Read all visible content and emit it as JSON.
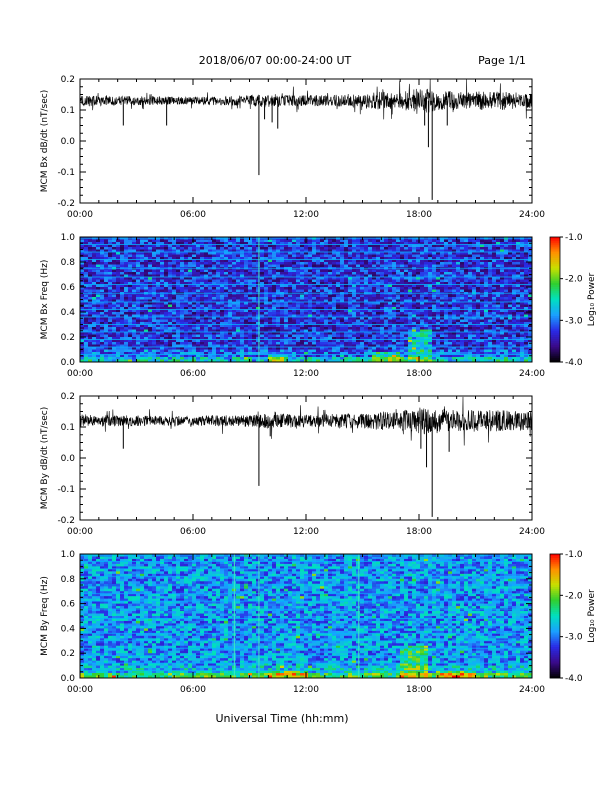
{
  "header": {
    "title": "2018/06/07  00:00-24:00 UT",
    "page": "Page 1/1"
  },
  "footer": {
    "xlabel": "Universal Time (hh:mm)"
  },
  "colorbar": {
    "label": "Log₁₀ Power",
    "ticks": [
      "-1.0",
      "-2.0",
      "-3.0",
      "-4.0"
    ],
    "range": [
      -4.0,
      -1.0
    ],
    "colors": [
      "#000000",
      "#3a0a8a",
      "#2a2ae6",
      "#1aa0ff",
      "#00e0c0",
      "#30d030",
      "#c8e000",
      "#ff9000",
      "#ff0000"
    ]
  },
  "chart_data": [
    {
      "type": "line",
      "ylabel": "MCM Bx dB/dt (nT/sec)",
      "xlim": [
        0,
        24
      ],
      "ylim": [
        -0.2,
        0.2
      ],
      "x_ticks": [
        "00:00",
        "06:00",
        "12:00",
        "18:00",
        "24:00"
      ],
      "y_ticks": [
        "0.2",
        "0.1",
        "0.0",
        "-0.1",
        "-0.2"
      ],
      "baseline": 0.13,
      "noise_profile": [
        [
          0,
          0.018
        ],
        [
          2,
          0.015
        ],
        [
          6,
          0.012
        ],
        [
          9,
          0.018
        ],
        [
          10,
          0.022
        ],
        [
          12,
          0.018
        ],
        [
          15,
          0.02
        ],
        [
          16,
          0.03
        ],
        [
          17,
          0.025
        ],
        [
          18,
          0.045
        ],
        [
          19,
          0.035
        ],
        [
          20,
          0.03
        ],
        [
          22,
          0.03
        ],
        [
          24,
          0.025
        ]
      ],
      "spikes": [
        [
          9.5,
          -0.11
        ],
        [
          9.8,
          0.07
        ],
        [
          10.2,
          0.06
        ],
        [
          10.5,
          0.04
        ],
        [
          4.6,
          0.05
        ],
        [
          18.7,
          -0.19
        ],
        [
          18.5,
          -0.02
        ],
        [
          18.3,
          0.05
        ],
        [
          19.5,
          0.05
        ],
        [
          2.3,
          0.05
        ]
      ]
    },
    {
      "type": "heatmap",
      "ylabel": "MCM Bx Freq (Hz)",
      "xlim": [
        0,
        24
      ],
      "ylim": [
        0.0,
        1.0
      ],
      "zlim": [
        -4.0,
        -1.0
      ],
      "x_ticks": [
        "00:00",
        "06:00",
        "12:00",
        "18:00",
        "24:00"
      ],
      "y_ticks": [
        "1.0",
        "0.8",
        "0.6",
        "0.4",
        "0.2",
        "0.0"
      ],
      "background_level": -3.3,
      "harmonic_lines_hz": [
        0.06,
        0.12,
        0.18,
        0.24,
        0.3,
        0.36,
        0.42,
        0.48,
        0.55,
        0.62,
        0.68,
        0.75,
        0.82,
        0.88,
        0.94,
        0.99
      ],
      "bright_vertical_lines_hr": [
        9.5
      ],
      "low_freq_bursts": [
        [
          10,
          11,
          0.06
        ],
        [
          17.5,
          18.6,
          0.25
        ],
        [
          15.5,
          17,
          0.08
        ]
      ]
    },
    {
      "type": "line",
      "ylabel": "MCM By dB/dt (nT/sec)",
      "xlim": [
        0,
        24
      ],
      "ylim": [
        -0.2,
        0.2
      ],
      "x_ticks": [
        "00:00",
        "06:00",
        "12:00",
        "18:00",
        "24:00"
      ],
      "y_ticks": [
        "0.2",
        "0.1",
        "0.0",
        "-0.1",
        "-0.2"
      ],
      "baseline": 0.12,
      "noise_profile": [
        [
          0,
          0.02
        ],
        [
          2,
          0.018
        ],
        [
          6,
          0.015
        ],
        [
          9,
          0.02
        ],
        [
          10,
          0.025
        ],
        [
          12,
          0.02
        ],
        [
          15,
          0.025
        ],
        [
          16,
          0.03
        ],
        [
          17,
          0.03
        ],
        [
          18,
          0.045
        ],
        [
          19,
          0.04
        ],
        [
          20,
          0.035
        ],
        [
          22,
          0.035
        ],
        [
          24,
          0.03
        ]
      ],
      "spikes": [
        [
          9.5,
          -0.09
        ],
        [
          10.1,
          0.07
        ],
        [
          18.7,
          -0.19
        ],
        [
          18.4,
          -0.03
        ],
        [
          18.1,
          0.03
        ],
        [
          19.6,
          0.02
        ],
        [
          2.3,
          0.03
        ]
      ]
    },
    {
      "type": "heatmap",
      "ylabel": "MCM By Freq (Hz)",
      "xlim": [
        0,
        24
      ],
      "ylim": [
        0.0,
        1.0
      ],
      "zlim": [
        -4.0,
        -1.0
      ],
      "x_ticks": [
        "00:00",
        "06:00",
        "12:00",
        "18:00",
        "24:00"
      ],
      "y_ticks": [
        "1.0",
        "0.8",
        "0.6",
        "0.4",
        "0.2",
        "0.0"
      ],
      "background_level": -2.9,
      "harmonic_lines_hz": [
        0.06,
        0.12,
        0.18,
        0.24,
        0.3,
        0.36,
        0.42,
        0.48,
        0.55,
        0.62,
        0.68,
        0.75,
        0.82,
        0.88,
        0.94,
        0.99
      ],
      "bright_vertical_lines_hr": [
        8.2,
        9.5,
        14.8
      ],
      "low_freq_bursts": [
        [
          17,
          18.5,
          0.25
        ],
        [
          10,
          12,
          0.06
        ],
        [
          19,
          21,
          0.06
        ]
      ]
    }
  ]
}
